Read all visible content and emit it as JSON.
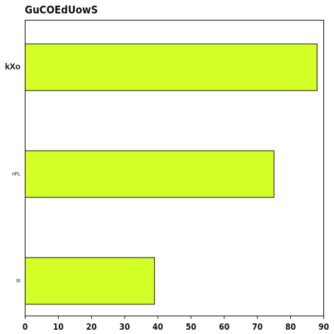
{
  "chart_data": {
    "type": "bar",
    "orientation": "horizontal",
    "title": "GuCOEdUowS",
    "xlabel": "",
    "ylabel": "",
    "categories": [
      "kXo",
      "nFL",
      "Xt"
    ],
    "values": [
      88,
      75,
      39
    ],
    "xlim": [
      0,
      90
    ],
    "x_ticks": [
      0,
      10,
      20,
      30,
      40,
      50,
      60,
      70,
      80,
      90
    ],
    "grid": false,
    "legend": "none",
    "colors": {
      "bar_fill": "#d4ff26",
      "bar_stroke": "#111111",
      "axis": "#111111"
    }
  }
}
